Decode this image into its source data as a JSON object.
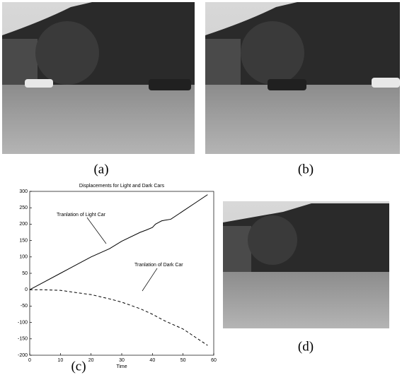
{
  "labels": [
    "(a)",
    "(b)",
    "(c)",
    "(d)"
  ],
  "chart_data": {
    "type": "line",
    "title": "Displacements for Light and Dark Cars",
    "xlabel": "Time",
    "annotations": [
      "Tranlation of Light Car",
      "Tranlation of Dark Car"
    ],
    "xlim": [
      0,
      60
    ],
    "xticks": [
      0,
      10,
      20,
      30,
      40,
      50,
      60
    ],
    "ylim": [
      -200,
      300
    ],
    "yticks": [
      -200,
      -150,
      -100,
      -50,
      0,
      50,
      100,
      150,
      200,
      250,
      300
    ],
    "series": [
      {
        "color": "#000000",
        "dash": false,
        "x": [
          0,
          4,
          10,
          16,
          20,
          26,
          30,
          36,
          38,
          40,
          41,
          42,
          43,
          44,
          46,
          50,
          54,
          58
        ],
        "values": [
          0,
          20,
          50,
          80,
          100,
          125,
          148,
          175,
          182,
          190,
          200,
          205,
          210,
          212,
          215,
          240,
          265,
          290
        ]
      },
      {
        "color": "#000000",
        "dash": true,
        "x": [
          0,
          4,
          10,
          16,
          20,
          26,
          30,
          36,
          40,
          44,
          50,
          54,
          58
        ],
        "values": [
          0,
          0,
          -2,
          -10,
          -15,
          -28,
          -38,
          -58,
          -75,
          -95,
          -120,
          -145,
          -170
        ]
      }
    ]
  }
}
